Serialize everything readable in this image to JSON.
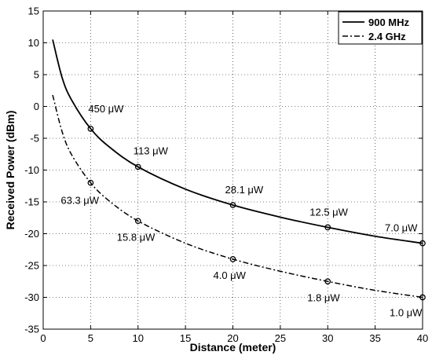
{
  "chart_data": {
    "type": "line",
    "xlabel": "Distance (meter)",
    "ylabel": "Received Power (dBm)",
    "xlim": [
      0,
      40
    ],
    "ylim": [
      -35,
      15
    ],
    "xticks": [
      0,
      5,
      10,
      15,
      20,
      25,
      30,
      35,
      40
    ],
    "yticks": [
      15,
      10,
      5,
      0,
      -5,
      -10,
      -15,
      -20,
      -25,
      -30,
      -35
    ],
    "grid": true,
    "legend_position": "top-right",
    "series": [
      {
        "name": "900 MHz",
        "style": "solid",
        "color": "#000000",
        "curve_x": [
          1,
          2,
          3,
          5,
          7,
          10,
          15,
          20,
          25,
          30,
          35,
          40
        ],
        "curve_y": [
          10.5,
          4.5,
          1.0,
          -3.5,
          -6.4,
          -9.5,
          -13.0,
          -15.5,
          -17.4,
          -19.0,
          -20.4,
          -21.5
        ],
        "markers": [
          {
            "x": 5,
            "y": -3.5,
            "label": "450 μW"
          },
          {
            "x": 10,
            "y": -9.5,
            "label": "113 μW"
          },
          {
            "x": 20,
            "y": -15.5,
            "label": "28.1 μW"
          },
          {
            "x": 30,
            "y": -19.0,
            "label": "12.5 μW"
          },
          {
            "x": 40,
            "y": -21.5,
            "label": "7.0 μW"
          }
        ]
      },
      {
        "name": "2.4 GHz",
        "style": "dash-dot",
        "color": "#000000",
        "curve_x": [
          1,
          2,
          3,
          5,
          7,
          10,
          15,
          20,
          25,
          30,
          35,
          40
        ],
        "curve_y": [
          1.8,
          -4.0,
          -7.6,
          -12.0,
          -14.9,
          -18.0,
          -21.5,
          -24.0,
          -25.9,
          -27.5,
          -28.9,
          -30.0
        ],
        "markers": [
          {
            "x": 5,
            "y": -12.0,
            "label": "63.3 μW"
          },
          {
            "x": 10,
            "y": -18.0,
            "label": "15.8 μW"
          },
          {
            "x": 20,
            "y": -24.0,
            "label": "4.0 μW"
          },
          {
            "x": 30,
            "y": -27.5,
            "label": "1.8 μW"
          },
          {
            "x": 40,
            "y": -30.0,
            "label": "1.0 μW"
          }
        ]
      }
    ]
  }
}
